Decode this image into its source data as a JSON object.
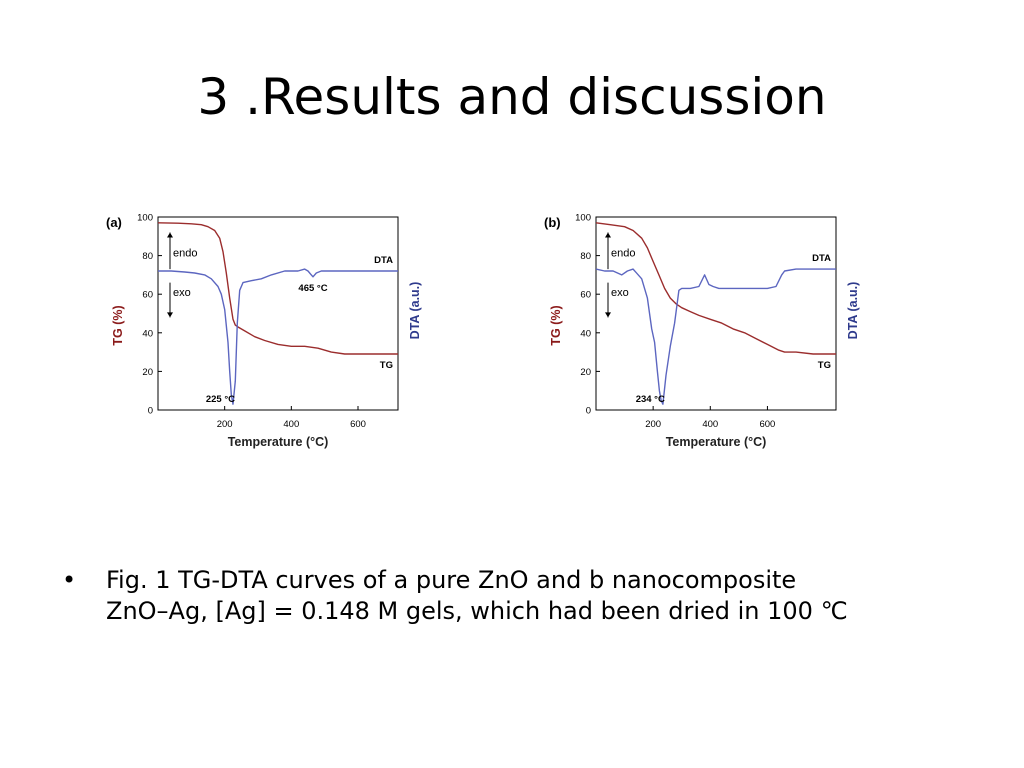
{
  "slide": {
    "title": "3 .Results and discussion",
    "bullet_symbol": "•",
    "bullet_lines": [
      "Fig. 1 TG-DTA curves of a pure ZnO and b nanocomposite",
      "ZnO–Ag, [Ag] = 0.148 M gels, which had been dried in 100 ℃"
    ]
  },
  "colors": {
    "tg": "#9b2d2d",
    "dta": "#5c66c0",
    "axis_tg": "#8b1a1a",
    "axis_dta": "#2e3a8c",
    "frame": "#000000"
  },
  "chart_data": [
    {
      "type": "line",
      "panel_label": "(a)",
      "xlabel": "Temperature (°C)",
      "ylabel": "TG (%)",
      "y2label": "DTA (a.u.)",
      "xlim": [
        0,
        720
      ],
      "ylim": [
        0,
        100
      ],
      "xticks": [
        200,
        400,
        600
      ],
      "yticks": [
        0,
        20,
        40,
        60,
        80,
        100
      ],
      "endo_label": "endo",
      "exo_label": "exo",
      "series": [
        {
          "name": "TG",
          "color": "#9b2d2d",
          "x": [
            0,
            60,
            100,
            130,
            150,
            170,
            185,
            195,
            205,
            215,
            225,
            232,
            240,
            260,
            290,
            320,
            360,
            400,
            440,
            480,
            520,
            560,
            600,
            640,
            680,
            720
          ],
          "y": [
            97,
            96.8,
            96.5,
            96,
            95,
            93,
            89,
            82,
            71,
            58,
            47,
            44,
            43,
            41,
            38,
            36,
            34,
            33,
            33,
            32,
            30,
            29,
            29,
            29,
            29,
            29
          ]
        },
        {
          "name": "DTA",
          "color": "#5c66c0",
          "x": [
            0,
            40,
            80,
            110,
            140,
            160,
            180,
            190,
            200,
            210,
            215,
            220,
            225,
            232,
            238,
            245,
            255,
            280,
            310,
            340,
            380,
            420,
            440,
            450,
            460,
            465,
            475,
            490,
            520,
            560,
            600,
            650,
            720
          ],
          "y": [
            72,
            72,
            71.5,
            71,
            70,
            68,
            64,
            60,
            52,
            35,
            20,
            8,
            3,
            15,
            45,
            62,
            66,
            67,
            68,
            70,
            72,
            72,
            73,
            72,
            70,
            69,
            71,
            72,
            72,
            72,
            72,
            72,
            72
          ]
        }
      ],
      "annotations": [
        {
          "text": "225 °C",
          "x": 225,
          "y": 3
        },
        {
          "text": "465 °C",
          "x": 465,
          "y": 69
        },
        {
          "text": "DTA",
          "x": 720,
          "y": 72
        },
        {
          "text": "TG",
          "x": 720,
          "y": 29
        }
      ]
    },
    {
      "type": "line",
      "panel_label": "(b)",
      "xlabel": "Temperature (°C)",
      "ylabel": "TG (%)",
      "y2label": "DTA (a.u.)",
      "xlim": [
        0,
        840
      ],
      "ylim": [
        0,
        100
      ],
      "xticks": [
        200,
        400,
        600
      ],
      "yticks": [
        0,
        20,
        40,
        60,
        80,
        100
      ],
      "endo_label": "endo",
      "exo_label": "exo",
      "series": [
        {
          "name": "TG",
          "color": "#9b2d2d",
          "x": [
            0,
            50,
            100,
            130,
            160,
            180,
            200,
            220,
            240,
            260,
            280,
            300,
            330,
            360,
            400,
            440,
            480,
            520,
            560,
            600,
            640,
            660,
            700,
            760,
            840
          ],
          "y": [
            97,
            96,
            95,
            93,
            89,
            84,
            77,
            70,
            63,
            58,
            55,
            53,
            51,
            49,
            47,
            45,
            42,
            40,
            37,
            34,
            31,
            30,
            30,
            29,
            29
          ]
        },
        {
          "name": "DTA",
          "color": "#5c66c0",
          "x": [
            0,
            30,
            60,
            90,
            110,
            130,
            160,
            180,
            195,
            205,
            215,
            222,
            228,
            234,
            245,
            260,
            275,
            290,
            300,
            330,
            360,
            380,
            395,
            410,
            430,
            470,
            520,
            560,
            600,
            630,
            650,
            660,
            700,
            760,
            840
          ],
          "y": [
            73,
            72,
            72,
            70,
            72,
            73,
            68,
            58,
            42,
            35,
            20,
            10,
            5,
            3,
            18,
            33,
            45,
            62,
            63,
            63,
            64,
            70,
            65,
            64,
            63,
            63,
            63,
            63,
            63,
            64,
            70,
            72,
            73,
            73,
            73
          ]
        }
      ],
      "annotations": [
        {
          "text": "234 °C",
          "x": 234,
          "y": 3
        },
        {
          "text": "DTA",
          "x": 840,
          "y": 73
        },
        {
          "text": "TG",
          "x": 840,
          "y": 29
        }
      ]
    }
  ]
}
